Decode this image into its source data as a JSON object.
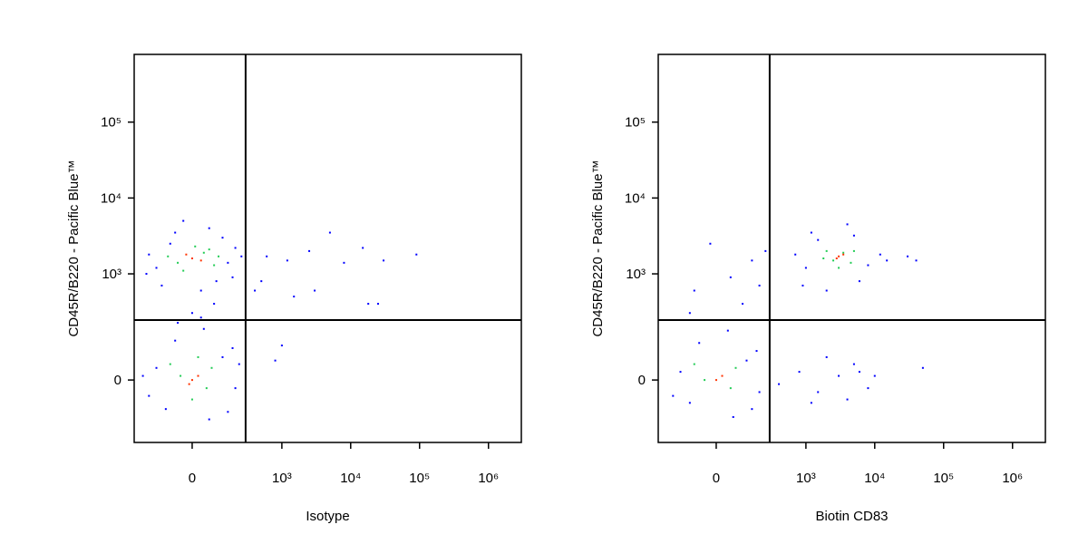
{
  "chart_data": [
    {
      "type": "scatter",
      "x_label": "Isotype",
      "y_label": "CD45R/B220 - Pacific Blue™",
      "xlim": [
        -340,
        3000000
      ],
      "ylim": [
        -260,
        780000
      ],
      "xticks": [
        0,
        {
          "value": 1000,
          "label": "10³"
        },
        {
          "value": 10000,
          "label": "10⁴"
        },
        {
          "value": 100000,
          "label": "10⁵"
        },
        {
          "value": 1000000,
          "label": "10⁶"
        }
      ],
      "yticks": [
        0,
        {
          "value": 1000,
          "label": "10³"
        },
        {
          "value": 10000,
          "label": "10⁴"
        },
        {
          "value": 100000,
          "label": "10⁵"
        }
      ],
      "gates": {
        "x": 290,
        "y": 240
      },
      "series": [
        {
          "color": "#0000ff",
          "x": [
            -150,
            -80,
            120,
            180,
            -200,
            60,
            200,
            -120,
            30,
            150,
            -60,
            250,
            -220,
            90,
            -30,
            -150,
            -100,
            120,
            200,
            -200,
            60,
            180,
            -60,
            150,
            -250,
            40,
            230,
            0,
            -50,
            80,
            30,
            600,
            1200,
            2500,
            5000,
            8000,
            15000,
            30000,
            90000,
            1500,
            3000,
            18000,
            25000,
            500,
            1000,
            800,
            400
          ],
          "y": [
            1200,
            2500,
            3000,
            900,
            1800,
            4000,
            2200,
            700,
            600,
            1400,
            3500,
            1700,
            1000,
            800,
            5000,
            30,
            -80,
            60,
            -20,
            -40,
            -120,
            90,
            120,
            -90,
            10,
            180,
            40,
            300,
            220,
            400,
            260,
            1700,
            1500,
            2000,
            3500,
            1400,
            2200,
            1500,
            1800,
            500,
            600,
            400,
            400,
            800,
            100,
            50,
            600
          ]
        },
        {
          "color": "#22cc55",
          "x": [
            -50,
            40,
            -90,
            80,
            10,
            100,
            -30,
            60,
            -40,
            50,
            -80,
            70,
            0,
            20
          ],
          "y": [
            1400,
            1900,
            1700,
            1300,
            2300,
            1700,
            1100,
            2100,
            10,
            -20,
            40,
            30,
            -50,
            60
          ]
        },
        {
          "color": "#ff3300",
          "x": [
            0,
            30,
            -20,
            0,
            20,
            -10
          ],
          "y": [
            1600,
            1500,
            1800,
            0,
            10,
            -10
          ]
        }
      ]
    },
    {
      "type": "scatter",
      "x_label": "Biotin CD83",
      "y_label": "CD45R/B220 - Pacific Blue™",
      "xlim": [
        -340,
        3000000
      ],
      "ylim": [
        -260,
        780000
      ],
      "xticks": [
        0,
        {
          "value": 1000,
          "label": "10³"
        },
        {
          "value": 10000,
          "label": "10⁴"
        },
        {
          "value": 100000,
          "label": "10⁵"
        },
        {
          "value": 1000000,
          "label": "10⁶"
        }
      ],
      "yticks": [
        0,
        {
          "value": 1000,
          "label": "10³"
        },
        {
          "value": 10000,
          "label": "10⁴"
        },
        {
          "value": 100000,
          "label": "10⁵"
        }
      ],
      "gates": {
        "x": 290,
        "y": 240
      },
      "series": [
        {
          "color": "#0000ff",
          "x": [
            -150,
            -100,
            120,
            200,
            -200,
            60,
            180,
            -60,
            150,
            40,
            1000,
            1500,
            5000,
            8000,
            900,
            2000,
            6000,
            12000,
            15000,
            1200,
            4000,
            700,
            30000,
            40000,
            -80,
            50,
            150,
            -20,
            100,
            200,
            -100,
            250,
            800,
            1500,
            3000,
            5000,
            8000,
            2000,
            1200,
            10000,
            4000,
            6000,
            50000,
            400
          ],
          "y": [
            20,
            -60,
            50,
            -30,
            -40,
            -110,
            80,
            110,
            -80,
            170,
            1200,
            2800,
            3200,
            1300,
            700,
            600,
            800,
            1800,
            1500,
            3500,
            4500,
            1800,
            1700,
            1500,
            600,
            900,
            1500,
            2500,
            400,
            700,
            300,
            2000,
            20,
            -30,
            10,
            40,
            -20,
            60,
            -60,
            10,
            -50,
            20,
            30,
            -10
          ]
        },
        {
          "color": "#22cc55",
          "x": [
            2500,
            3500,
            2000,
            4500,
            3000,
            1800,
            5000,
            -40,
            50,
            -80,
            70
          ],
          "y": [
            1500,
            1900,
            2000,
            1400,
            1200,
            1600,
            2000,
            0,
            -20,
            40,
            30
          ]
        },
        {
          "color": "#ff3300",
          "x": [
            3000,
            2800,
            3500,
            0,
            20
          ],
          "y": [
            1700,
            1600,
            1800,
            0,
            10
          ]
        }
      ]
    }
  ]
}
